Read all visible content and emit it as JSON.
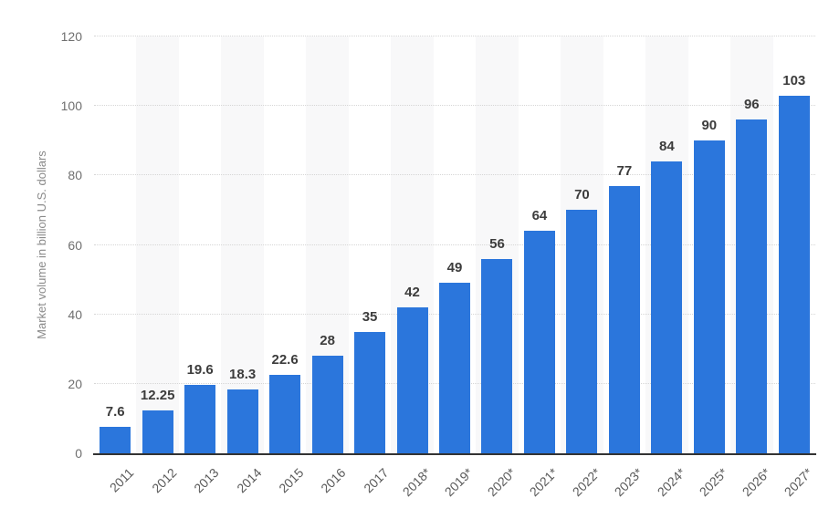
{
  "chart_data": {
    "type": "bar",
    "title": "",
    "ylabel": "Market volume in billion U.S. dollars",
    "xlabel": "",
    "categories": [
      "2011",
      "2012",
      "2013",
      "2014",
      "2015",
      "2016",
      "2017",
      "2018*",
      "2019*",
      "2020*",
      "2021*",
      "2022*",
      "2023*",
      "2024*",
      "2025*",
      "2026*",
      "2027*"
    ],
    "values": [
      7.6,
      12.25,
      19.6,
      18.3,
      22.6,
      28,
      35,
      42,
      49,
      56,
      64,
      70,
      77,
      84,
      90,
      96,
      103
    ],
    "value_labels": [
      "7.6",
      "12.25",
      "19.6",
      "18.3",
      "22.6",
      "28",
      "35",
      "42",
      "49",
      "56",
      "64",
      "70",
      "77",
      "84",
      "90",
      "96",
      "103"
    ],
    "ylim": [
      0,
      120
    ],
    "yticks": [
      0,
      20,
      40,
      60,
      80,
      100,
      120
    ],
    "grid": "horizontal-dotted",
    "legend": "none",
    "colors": {
      "bar": "#2b76dc",
      "band": "#f8f8f9",
      "gridline": "#d6d6d6",
      "axis_line": "#333333",
      "value_label": "#3c3c3c",
      "tick_label": "#6f6f6f",
      "x_label": "#5a5a5a",
      "axis_title": "#8a8a8a"
    }
  }
}
